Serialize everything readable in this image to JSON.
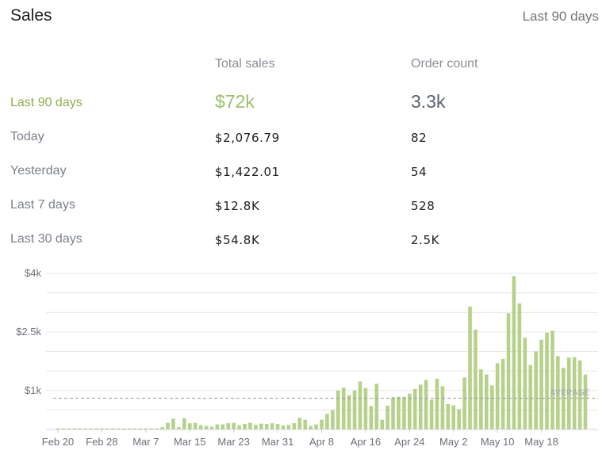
{
  "header": {
    "title": "Sales",
    "period": "Last 90 days"
  },
  "columns": {
    "total_sales": "Total sales",
    "order_count": "Order count"
  },
  "summary": {
    "label": "Last 90 days",
    "total_sales": "$72k",
    "order_count": "3.3k"
  },
  "rows": [
    {
      "label": "Today",
      "total_sales": "$2,076.79",
      "order_count": "82"
    },
    {
      "label": "Yesterday",
      "total_sales": "$1,422.01",
      "order_count": "54"
    },
    {
      "label": "Last 7 days",
      "total_sales": "$12.8K",
      "order_count": "528"
    },
    {
      "label": "Last 30 days",
      "total_sales": "$54.8K",
      "order_count": "2.5K"
    }
  ],
  "colors": {
    "bar": "#b5d18a",
    "accent": "#8cae4e",
    "grid": "#e4e6e9",
    "average_line": "#9a9a9a"
  },
  "chart_data": {
    "type": "bar",
    "title": "",
    "xlabel": "",
    "ylabel": "",
    "ylim": [
      0,
      4000
    ],
    "grid": true,
    "y_ticks": [
      1000,
      2500,
      4000
    ],
    "y_tick_labels": [
      "$1k",
      "$2.5k",
      "$4k"
    ],
    "x_tick_labels": [
      "Feb 20",
      "Feb 28",
      "Mar 7",
      "Mar 15",
      "Mar 23",
      "Mar 31",
      "Apr 8",
      "Apr 16",
      "Apr 24",
      "May 2",
      "May 10",
      "May 18"
    ],
    "average": {
      "label": "AVERAGE",
      "value": 800
    },
    "values": [
      30,
      30,
      30,
      30,
      30,
      30,
      30,
      30,
      30,
      30,
      30,
      30,
      30,
      30,
      30,
      30,
      30,
      30,
      30,
      60,
      170,
      280,
      60,
      290,
      160,
      170,
      110,
      90,
      70,
      130,
      130,
      160,
      170,
      110,
      140,
      170,
      120,
      150,
      140,
      160,
      140,
      100,
      120,
      160,
      300,
      250,
      90,
      130,
      250,
      400,
      500,
      1000,
      1070,
      880,
      1000,
      1230,
      1060,
      600,
      1170,
      250,
      610,
      830,
      840,
      840,
      920,
      1040,
      1150,
      1270,
      760,
      1300,
      1110,
      650,
      620,
      520,
      1330,
      3150,
      2560,
      1540,
      1410,
      1130,
      1700,
      1810,
      2980,
      3930,
      3230,
      2350,
      1650,
      2000,
      2300,
      2480,
      2530,
      1880,
      1580,
      1840,
      1850,
      1770,
      1410
    ]
  }
}
